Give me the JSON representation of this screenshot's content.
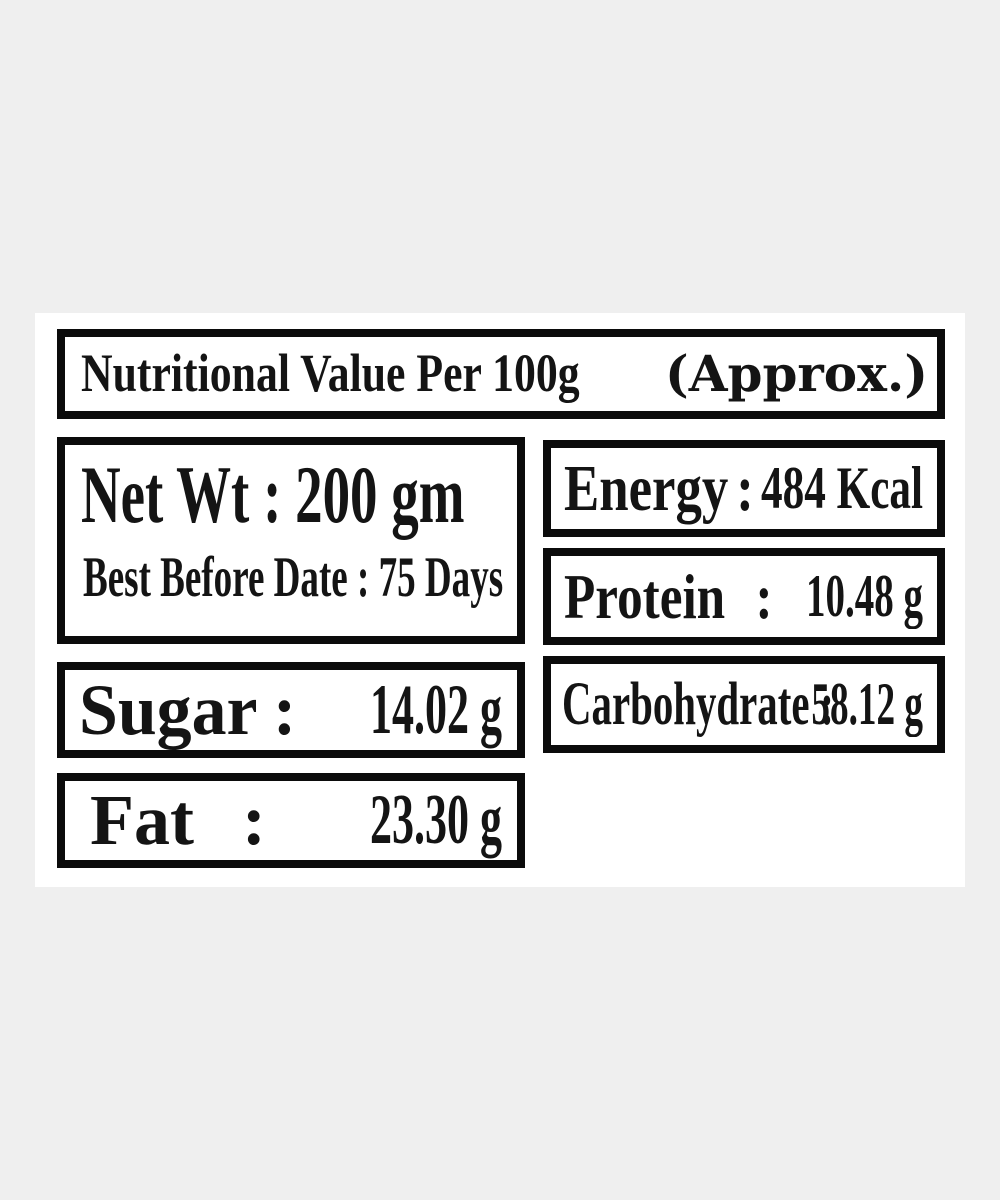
{
  "colors": {
    "background": "#efefef",
    "panel": "#ffffff",
    "border": "#0b0b0b",
    "text": "#141414"
  },
  "title": {
    "main": "Nutritional Value Per 100g",
    "suffix": "(Approx.)"
  },
  "net_weight": {
    "line1": "Net Wt : 200 gm",
    "line2": "Best Before Date : 75 Days"
  },
  "nutrition": {
    "energy": {
      "label": "Energy",
      "colon": ":",
      "value": "484 Kcal"
    },
    "protein": {
      "label": "Protein",
      "colon": ":",
      "value": "10.48 g"
    },
    "carbohydrate": {
      "label": "Carbohydrate",
      "colon": ":",
      "value": "58.12 g"
    },
    "sugar": {
      "label": "Sugar",
      "colon": ":",
      "value": "14.02 g"
    },
    "fat": {
      "label": "Fat",
      "colon": ":",
      "value": "23.30 g"
    }
  }
}
